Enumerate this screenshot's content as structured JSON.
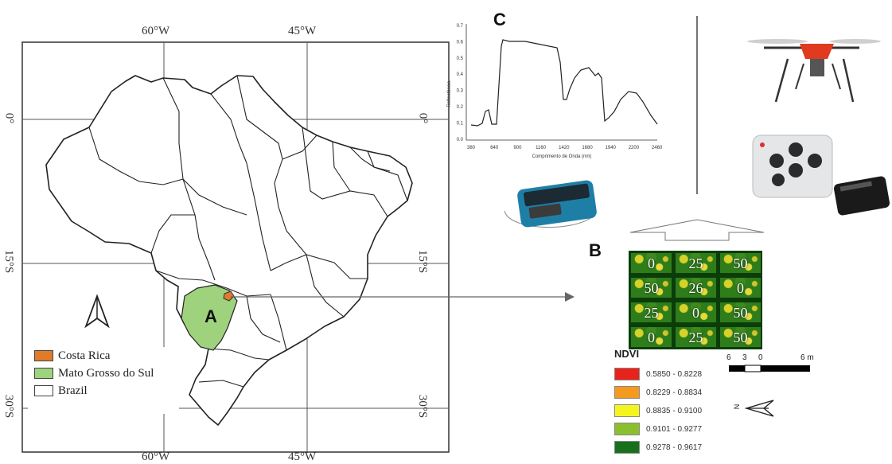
{
  "panels": {
    "a": "A",
    "b": "B",
    "c": "C"
  },
  "coords": {
    "top": [
      "60°W",
      "45°W"
    ],
    "bottom": [
      "60°W",
      "45°W"
    ],
    "left": [
      "0°",
      "15°S",
      "30°S"
    ],
    "right": [
      "0°",
      "15°S",
      "30°S"
    ]
  },
  "legend": {
    "items": [
      {
        "label": "Costa Rica",
        "color": "#e07b2a"
      },
      {
        "label": "Mato Grosso do Sul",
        "color": "#9ed27d"
      },
      {
        "label": "Brazil",
        "color": "#ffffff"
      }
    ]
  },
  "spectrum": {
    "ylabel": "Reflectância",
    "xlabel": "Comprimento de Onda (nm)",
    "yticks": [
      "0.7",
      "0.6",
      "0.5",
      "0.4",
      "0.3",
      "0.2",
      "0.1",
      "0.0"
    ],
    "xticks": [
      "380",
      "640",
      "900",
      "1160",
      "1420",
      "1680",
      "1940",
      "2200",
      "2460"
    ]
  },
  "plots": {
    "rows": [
      [
        "0",
        "25",
        "50"
      ],
      [
        "50",
        "26",
        "0"
      ],
      [
        "25",
        "0",
        "50"
      ],
      [
        "0",
        "25",
        "50"
      ]
    ]
  },
  "ndvi": {
    "title": "NDVI",
    "classes": [
      {
        "label": "0.5850 - 0.8228",
        "color": "#e8231b"
      },
      {
        "label": "0.8229 - 0.8834",
        "color": "#f59a1e"
      },
      {
        "label": "0.8835 - 0.9100",
        "color": "#f5f51e"
      },
      {
        "label": "0.9101 - 0.9277",
        "color": "#8cbf2e"
      },
      {
        "label": "0.9278 - 0.9617",
        "color": "#17701c"
      }
    ]
  },
  "scale": {
    "labels": [
      "6",
      "3",
      "0",
      "6 m"
    ]
  },
  "north": "N"
}
